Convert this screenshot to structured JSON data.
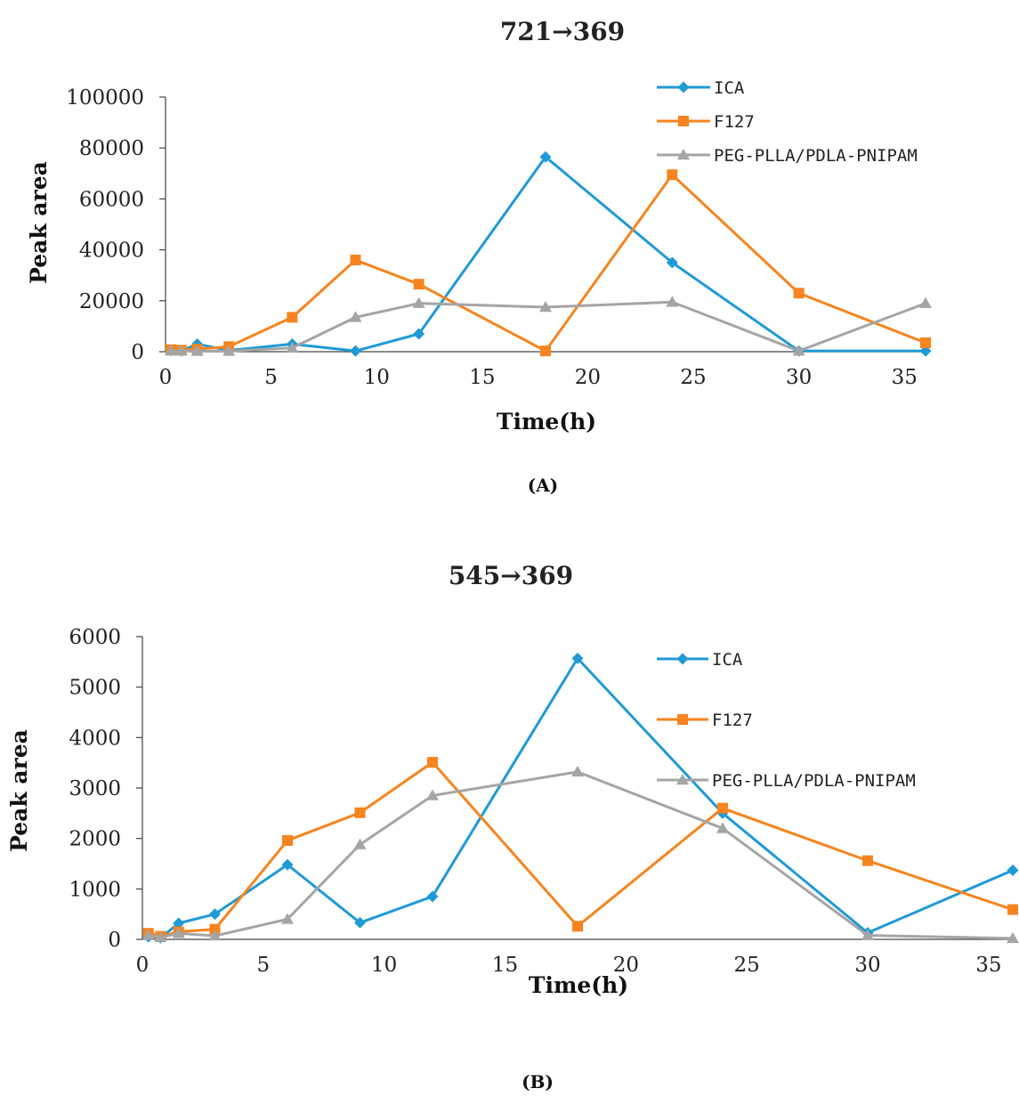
{
  "colors": {
    "ICA": "#1f9ad6",
    "F127": "#f7841e",
    "PEG-PLLA/PDLA-PNIPAM": "#a5a5a5"
  },
  "chart_data": [
    {
      "type": "line",
      "panel_label": "(A)",
      "title": "721→369",
      "xlabel": "Time(h)",
      "ylabel": "Peak area",
      "xlim": [
        0,
        36
      ],
      "ylim": [
        0,
        100000
      ],
      "xticks": [
        0,
        5,
        10,
        15,
        20,
        25,
        30,
        35
      ],
      "yticks": [
        0,
        20000,
        40000,
        60000,
        80000,
        100000
      ],
      "grid": false,
      "legend_position": "top-right",
      "series": [
        {
          "name": "ICA",
          "marker": "diamond",
          "x": [
            0.25,
            0.75,
            1.5,
            3,
            6,
            9,
            12,
            18,
            24,
            30,
            36
          ],
          "y": [
            500,
            300,
            3000,
            500,
            3000,
            300,
            7000,
            76500,
            35000,
            300,
            300
          ]
        },
        {
          "name": "F127",
          "marker": "square",
          "x": [
            0.25,
            0.75,
            1.5,
            3,
            6,
            9,
            12,
            18,
            24,
            30,
            36
          ],
          "y": [
            800,
            600,
            1000,
            2000,
            13500,
            36000,
            26500,
            300,
            69500,
            23000,
            3500
          ]
        },
        {
          "name": "PEG-PLLA/PDLA-PNIPAM",
          "marker": "triangle",
          "x": [
            0.25,
            0.75,
            1.5,
            3,
            6,
            9,
            12,
            18,
            24,
            30,
            36
          ],
          "y": [
            300,
            300,
            200,
            200,
            1500,
            13500,
            19000,
            17500,
            19500,
            300,
            19000
          ]
        }
      ]
    },
    {
      "type": "line",
      "panel_label": "(B)",
      "title": "545→369",
      "xlabel": "Time(h)",
      "ylabel": "Peak area",
      "xlim": [
        0,
        36
      ],
      "ylim": [
        0,
        6000
      ],
      "xticks": [
        0,
        5,
        10,
        15,
        20,
        25,
        30,
        35
      ],
      "yticks": [
        0,
        1000,
        2000,
        3000,
        4000,
        5000,
        6000
      ],
      "grid": false,
      "legend_position": "top-right",
      "series": [
        {
          "name": "ICA",
          "marker": "diamond",
          "x": [
            0.25,
            0.75,
            1.5,
            3,
            6,
            9,
            12,
            18,
            24,
            30,
            36
          ],
          "y": [
            50,
            30,
            320,
            500,
            1480,
            330,
            850,
            5570,
            2500,
            130,
            1370
          ]
        },
        {
          "name": "F127",
          "marker": "square",
          "x": [
            0.25,
            0.75,
            1.5,
            3,
            6,
            9,
            12,
            18,
            24,
            30,
            36
          ],
          "y": [
            120,
            60,
            150,
            200,
            1960,
            2510,
            3510,
            260,
            2600,
            1560,
            590
          ]
        },
        {
          "name": "PEG-PLLA/PDLA-PNIPAM",
          "marker": "triangle",
          "x": [
            0.25,
            0.75,
            1.5,
            3,
            6,
            9,
            12,
            18,
            24,
            30,
            36
          ],
          "y": [
            80,
            40,
            120,
            70,
            400,
            1880,
            2850,
            3320,
            2200,
            80,
            20
          ]
        }
      ]
    }
  ]
}
